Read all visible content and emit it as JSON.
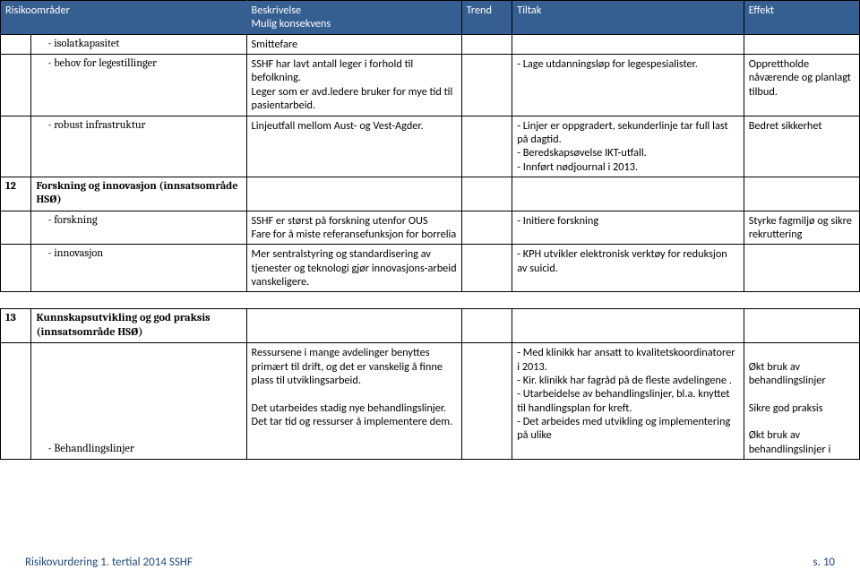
{
  "header": {
    "risk": "Risikoområder",
    "besk_l1": "Beskrivelse",
    "besk_l2": "Mulig konsekvens",
    "trend": "Trend",
    "tiltak": "Tiltak",
    "effekt": "Effekt"
  },
  "table1": {
    "r1": {
      "risk": "- isolatkapasitet",
      "besk": "Smittefare"
    },
    "r2": {
      "risk": "- behov for legestillinger",
      "besk": "SSHF har lavt antall leger i forhold til befolkning.\nLeger som er avd.ledere bruker for mye tid til pasientarbeid.",
      "tiltak": "- Lage utdanningsløp for legespesialister.",
      "effekt": "Opprettholde nåværende og planlagt tilbud."
    },
    "r3": {
      "risk": "- robust infrastruktur",
      "besk": "Linjeutfall mellom Aust- og Vest-Agder.",
      "tiltak": "- Linjer er oppgradert, sekunderlinje tar full last på dagtid.\n- Beredskapsøvelse IKT-utfall.\n- Innført nødjournal i 2013.",
      "effekt": "Bedret sikkerhet"
    },
    "section12": {
      "num": "12",
      "title": "Forskning og innovasjon (innsatsområde HSØ)"
    },
    "r4": {
      "risk": "- forskning",
      "besk": "SSHF er størst på forskning utenfor OUS\nFare for å miste referansefunksjon for borrelia",
      "tiltak": "- Initiere forskning",
      "effekt": "Styrke fagmiljø og sikre rekruttering"
    },
    "r5": {
      "risk": "- innovasjon",
      "besk": "Mer sentralstyring og standardisering av tjenester og teknologi gjør innovasjons-arbeid vanskeligere.",
      "tiltak": "- KPH utvikler elektronisk verktøy for reduksjon av suicid."
    }
  },
  "table2": {
    "section13": {
      "num": "13",
      "title": "Kunnskapsutvikling og god praksis (innsatsområde HSØ)"
    },
    "r1": {
      "risk": "- Behandlingslinjer",
      "besk": "Ressursene i mange avdelinger benyttes primært til drift, og det er vanskelig å finne plass til utviklingsarbeid.\n\nDet utarbeides stadig nye behandlingslinjer.\nDet tar tid og ressurser å implementere dem.",
      "tiltak": "- Med klinikk har ansatt to kvalitetskoordinatorer i 2013.\n- Kir. klinikk har fagråd på de fleste avdelingene .\n- Utarbeidelse av behandlingslinjer, bl.a. knyttet til handlingsplan for kreft.\n- Det arbeides med utvikling og implementering på ulike",
      "effekt": "\nØkt bruk av behandlingslinjer\n\nSikre god praksis\n\nØkt bruk av behandlingslinjer i"
    }
  },
  "footer": {
    "left": "Risikovurdering 1. tertial 2014 SSHF",
    "right": "s. 10"
  },
  "colors": {
    "header_bg": "#365f91",
    "header_fg": "#ffffff",
    "footer_fg": "#1f497d",
    "border": "#000000",
    "page_bg": "#ffffff"
  }
}
